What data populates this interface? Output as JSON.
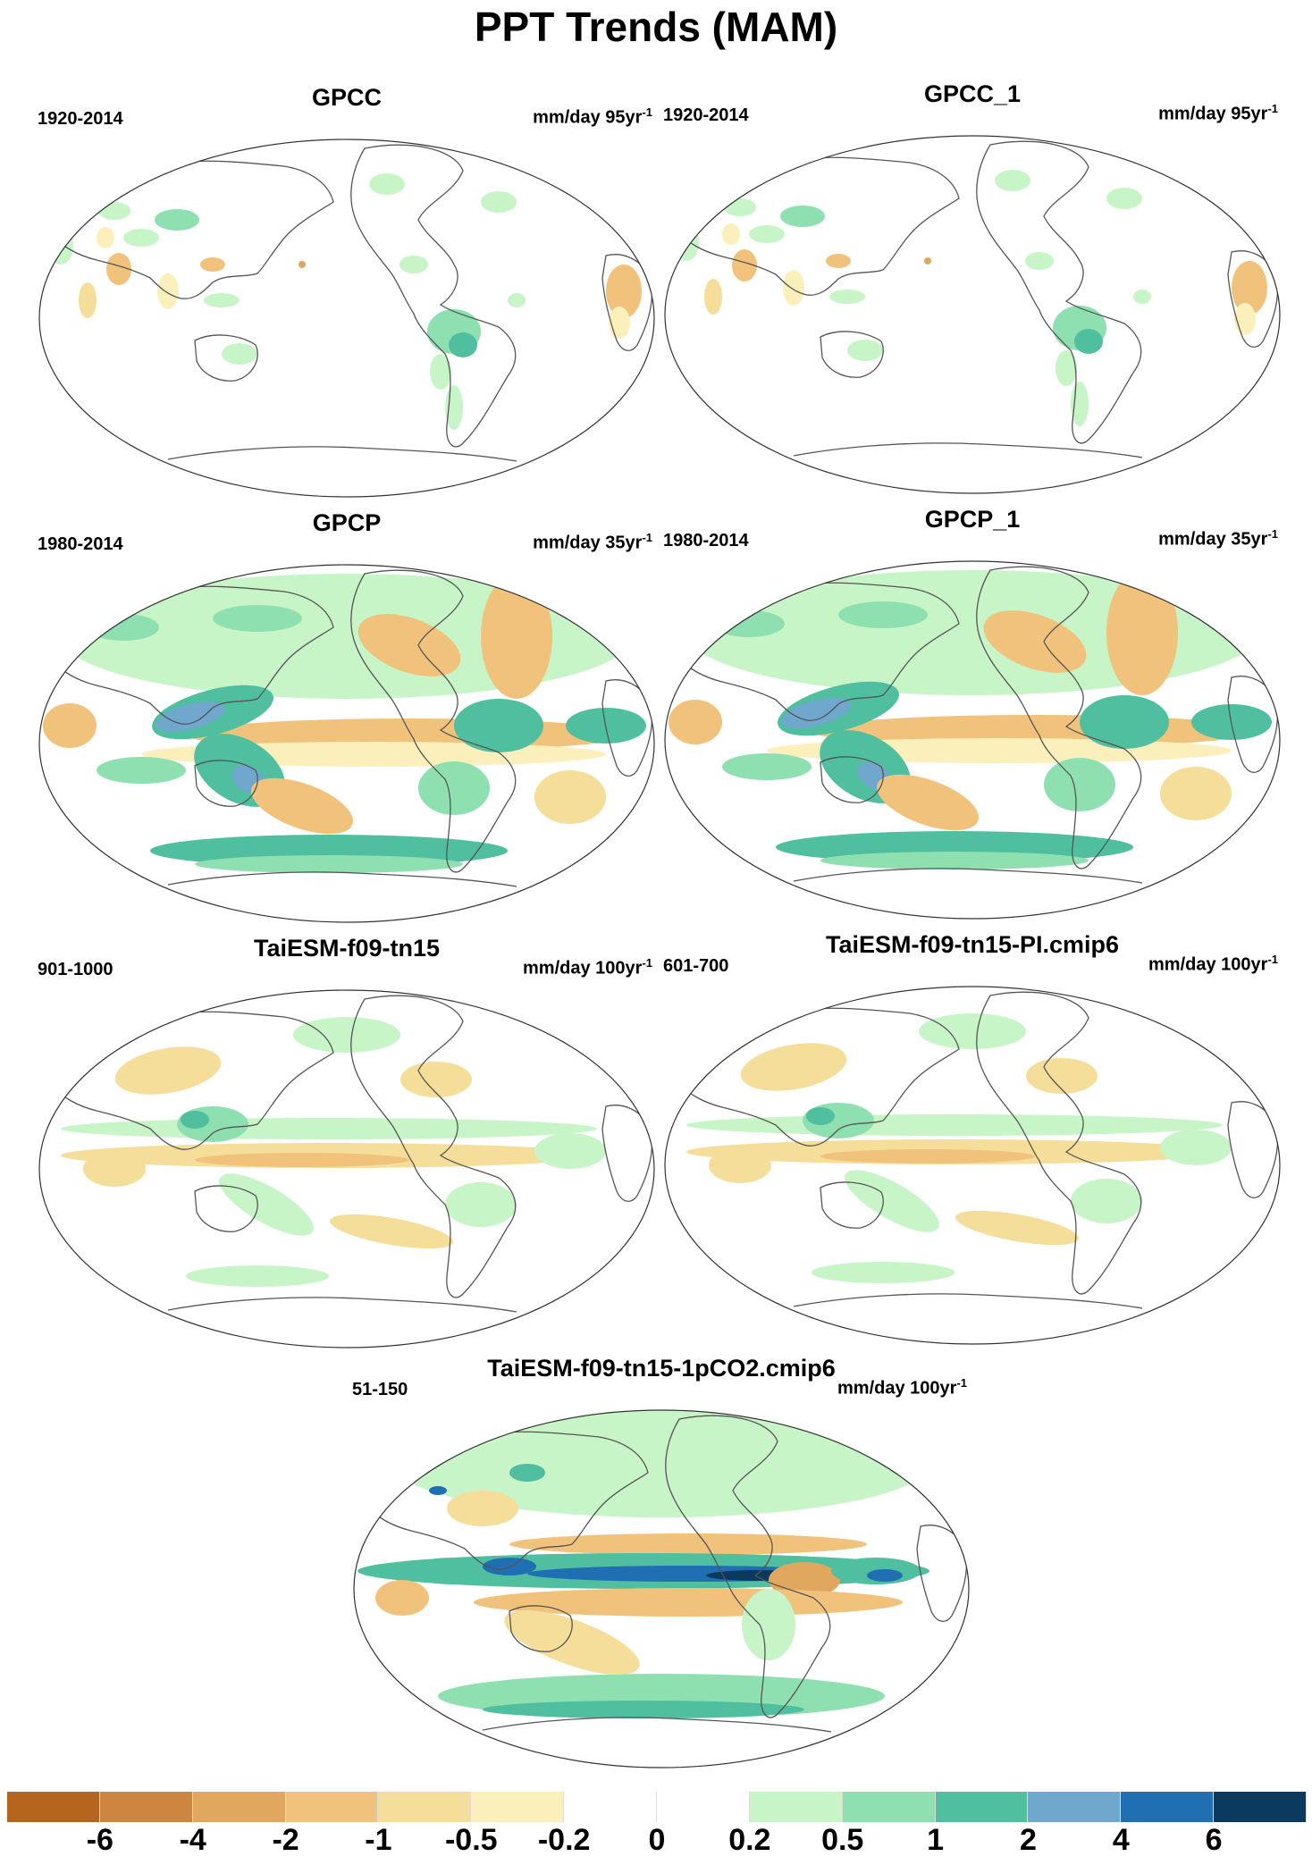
{
  "title": "PPT Trends (MAM)",
  "panels": [
    {
      "name": "GPCC",
      "period": "1920-2014",
      "units": "mm/day 95yr",
      "units_sup": "-1",
      "pattern": "obs_land"
    },
    {
      "name": "GPCC_1",
      "period": "1920-2014",
      "units": "mm/day 95yr",
      "units_sup": "-1",
      "pattern": "obs_land"
    },
    {
      "name": "GPCP",
      "period": "1980-2014",
      "units": "mm/day 35yr",
      "units_sup": "-1",
      "pattern": "gpcp"
    },
    {
      "name": "GPCP_1",
      "period": "1980-2014",
      "units": "mm/day 35yr",
      "units_sup": "-1",
      "pattern": "gpcp"
    },
    {
      "name": "TaiESM-f09-tn15",
      "period": "901-1000",
      "units": "mm/day 100yr",
      "units_sup": "-1",
      "pattern": "model_weak"
    },
    {
      "name": "TaiESM-f09-tn15-PI.cmip6",
      "period": "601-700",
      "units": "mm/day 100yr",
      "units_sup": "-1",
      "pattern": "model_weak"
    },
    {
      "name": "TaiESM-f09-tn15-1pCO2.cmip6",
      "period": "51-150",
      "units": "mm/day 100yr",
      "units_sup": "-1",
      "pattern": "model_strong"
    }
  ],
  "colorbar": {
    "colors": [
      "#b5651d",
      "#cd853f",
      "#e0a75e",
      "#f0c27b",
      "#f5dd9a",
      "#fbf0bc",
      "#ffffff",
      "#ffffff",
      "#c7f5c7",
      "#8fe0b0",
      "#4fbf9f",
      "#6fa8cc",
      "#1f6fb2",
      "#0b3a5e"
    ],
    "labels": [
      "-6",
      "-4",
      "-2",
      "-1",
      "-0.5",
      "-0.2",
      "0",
      "0.2",
      "0.5",
      "1",
      "2",
      "4",
      "6"
    ]
  }
}
